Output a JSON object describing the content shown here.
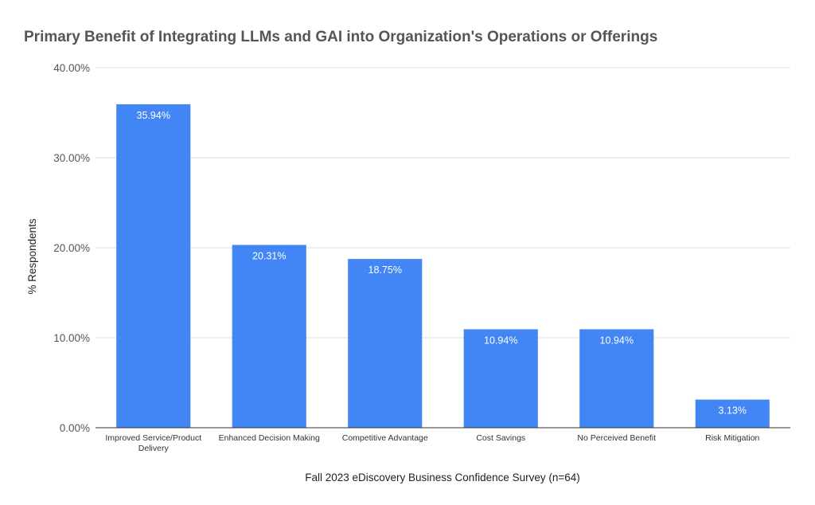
{
  "chart_data": {
    "type": "bar",
    "title": "Primary Benefit of Integrating LLMs and GAI into Organization's Operations or Offerings",
    "xlabel": "Fall 2023 eDiscovery Business Confidence Survey (n=64)",
    "ylabel": "% Respondents",
    "categories": [
      [
        "Improved Service/Product",
        "Delivery"
      ],
      [
        "Enhanced Decision Making"
      ],
      [
        "Competitive Advantage"
      ],
      [
        "Cost Savings"
      ],
      [
        "No Perceived Benefit"
      ],
      [
        "Risk Mitigation"
      ]
    ],
    "values": [
      35.94,
      20.31,
      18.75,
      10.94,
      10.94,
      3.13
    ],
    "value_labels": [
      "35.94%",
      "20.31%",
      "18.75%",
      "10.94%",
      "10.94%",
      "3.13%"
    ],
    "yticks": [
      0,
      10,
      20,
      30,
      40
    ],
    "ytick_labels": [
      "0.00%",
      "10.00%",
      "20.00%",
      "30.00%",
      "40.00%"
    ],
    "ylim": [
      0,
      40
    ],
    "grid": true,
    "legend": "none",
    "bar_color": "#4285f4"
  }
}
